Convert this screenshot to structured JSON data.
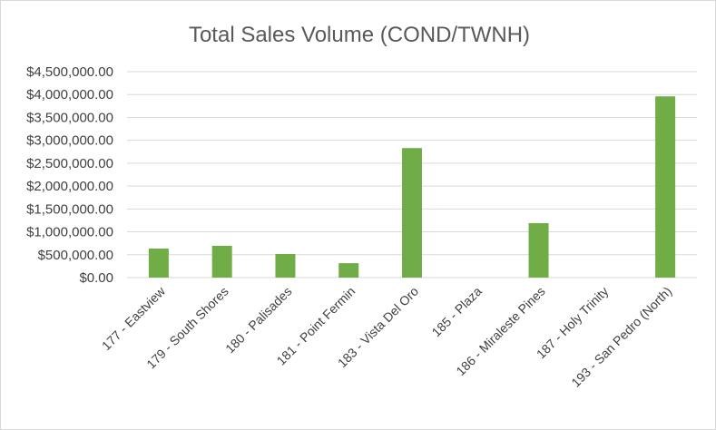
{
  "chart_data": {
    "type": "bar",
    "title": "Total Sales Volume (COND/TWNH)",
    "xlabel": "",
    "ylabel": "",
    "categories": [
      "177 - Eastview",
      "179 - South Shores",
      "180 - Palisades",
      "181 - Point Fermin",
      "183 - Vista Del Oro",
      "185 - Plaza",
      "186 - Miraleste Pines",
      "187 - Holy Trinity",
      "193 - San Pedro (North)"
    ],
    "values": [
      635000,
      695000,
      515000,
      315000,
      2830000,
      0,
      1190000,
      0,
      3960000
    ],
    "ylim": [
      0,
      4500000
    ],
    "yticks": [
      0,
      500000,
      1000000,
      1500000,
      2000000,
      2500000,
      3000000,
      3500000,
      4000000,
      4500000
    ],
    "ytick_labels": [
      "$0.00",
      "$500,000.00",
      "$1,000,000.00",
      "$1,500,000.00",
      "$2,000,000.00",
      "$2,500,000.00",
      "$3,000,000.00",
      "$3,500,000.00",
      "$4,000,000.00",
      "$4,500,000.00"
    ],
    "grid": true,
    "legend": "none",
    "bar_color": "#70ad47"
  }
}
